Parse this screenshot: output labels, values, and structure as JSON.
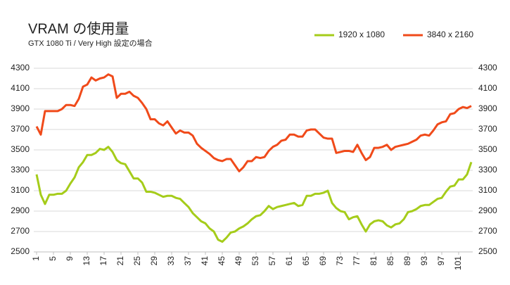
{
  "chart_data": {
    "type": "line",
    "title": "VRAM の使用量",
    "subtitle": "GTX 1080 Ti / Very High 設定の場合",
    "x": [
      1,
      2,
      3,
      4,
      5,
      6,
      7,
      8,
      9,
      10,
      11,
      12,
      13,
      14,
      15,
      16,
      17,
      18,
      19,
      20,
      21,
      22,
      23,
      24,
      25,
      26,
      27,
      28,
      29,
      30,
      31,
      32,
      33,
      34,
      35,
      36,
      37,
      38,
      39,
      40,
      41,
      42,
      43,
      44,
      45,
      46,
      47,
      48,
      49,
      50,
      51,
      52,
      53,
      54,
      55,
      56,
      57,
      58,
      59,
      60,
      61,
      62,
      63,
      64,
      65,
      66,
      67,
      68,
      69,
      70,
      71,
      72,
      73,
      74,
      75,
      76,
      77,
      78,
      79,
      80,
      81,
      82,
      83,
      84,
      85,
      86,
      87,
      88,
      89,
      90,
      91,
      92,
      93,
      94,
      95,
      96,
      97,
      98,
      99,
      100,
      101,
      102,
      103,
      104
    ],
    "xlim": [
      1,
      104
    ],
    "xticks": [
      1,
      5,
      9,
      13,
      17,
      21,
      25,
      29,
      33,
      37,
      41,
      45,
      49,
      53,
      57,
      61,
      65,
      69,
      73,
      77,
      81,
      85,
      89,
      93,
      97,
      101
    ],
    "ylim": [
      2500,
      4300
    ],
    "yticks": [
      2500,
      2700,
      2900,
      3100,
      3300,
      3500,
      3700,
      3900,
      4100,
      4300
    ],
    "y2lim": [
      2500,
      4300
    ],
    "y2ticks": [
      2500,
      2700,
      2900,
      3100,
      3300,
      3500,
      3700,
      3900,
      4100,
      4300
    ],
    "grid": true,
    "legend": "top-right",
    "series": [
      {
        "name": "1920 x 1080",
        "color": "#a5cc1a",
        "values": [
          3260,
          3060,
          2970,
          3060,
          3060,
          3070,
          3070,
          3100,
          3170,
          3230,
          3330,
          3380,
          3450,
          3450,
          3470,
          3510,
          3500,
          3530,
          3480,
          3400,
          3370,
          3360,
          3290,
          3220,
          3220,
          3180,
          3090,
          3090,
          3080,
          3060,
          3040,
          3050,
          3050,
          3030,
          3020,
          2980,
          2940,
          2880,
          2840,
          2800,
          2780,
          2730,
          2700,
          2620,
          2600,
          2640,
          2690,
          2700,
          2730,
          2750,
          2780,
          2820,
          2850,
          2860,
          2900,
          2950,
          2920,
          2940,
          2950,
          2960,
          2970,
          2980,
          2950,
          2960,
          3050,
          3050,
          3070,
          3070,
          3080,
          3100,
          2980,
          2930,
          2900,
          2890,
          2820,
          2840,
          2850,
          2770,
          2700,
          2770,
          2800,
          2810,
          2800,
          2760,
          2740,
          2770,
          2780,
          2820,
          2890,
          2900,
          2920,
          2950,
          2960,
          2960,
          2990,
          3020,
          3030,
          3090,
          3140,
          3150,
          3210,
          3210,
          3260,
          3380
        ]
      },
      {
        "name": "3840 x 2160",
        "color": "#f04a1a",
        "values": [
          3730,
          3650,
          3880,
          3880,
          3880,
          3880,
          3900,
          3940,
          3940,
          3930,
          4000,
          4120,
          4140,
          4210,
          4180,
          4200,
          4210,
          4240,
          4220,
          4010,
          4050,
          4050,
          4070,
          4030,
          4010,
          3960,
          3900,
          3800,
          3800,
          3760,
          3740,
          3780,
          3720,
          3660,
          3690,
          3670,
          3670,
          3640,
          3560,
          3520,
          3490,
          3460,
          3420,
          3400,
          3390,
          3410,
          3410,
          3350,
          3290,
          3330,
          3390,
          3390,
          3430,
          3420,
          3430,
          3490,
          3530,
          3550,
          3590,
          3600,
          3650,
          3650,
          3630,
          3630,
          3690,
          3700,
          3700,
          3660,
          3620,
          3610,
          3610,
          3470,
          3480,
          3490,
          3490,
          3480,
          3550,
          3470,
          3400,
          3430,
          3520,
          3520,
          3530,
          3550,
          3500,
          3530,
          3540,
          3550,
          3560,
          3580,
          3600,
          3640,
          3650,
          3640,
          3690,
          3750,
          3770,
          3780,
          3850,
          3860,
          3900,
          3920,
          3910,
          3930
        ]
      }
    ]
  }
}
